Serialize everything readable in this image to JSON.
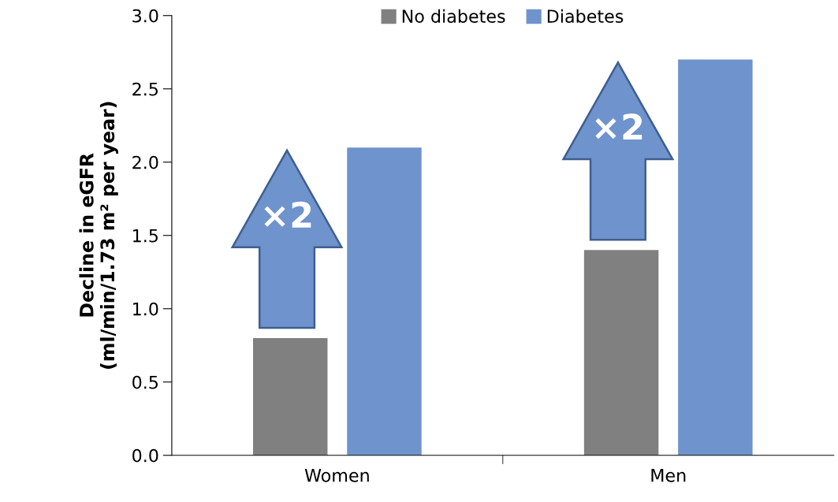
{
  "chart_data": {
    "type": "bar",
    "ylabel": "Decline in eGFR\n(ml/min/1.73 m² per year)",
    "categories": [
      "Women",
      "Men"
    ],
    "series": [
      {
        "name": "No diabetes",
        "color": "#808080",
        "values": [
          0.8,
          1.4
        ]
      },
      {
        "name": "Diabetes",
        "color": "#6f93cc",
        "values": [
          2.1,
          2.7
        ]
      }
    ],
    "ylim": [
      0,
      3.0
    ],
    "yticks": [
      {
        "value": 0,
        "label": "0.0"
      },
      {
        "value": 0.5,
        "label": "0.5"
      },
      {
        "value": 1.0,
        "label": "1.0"
      },
      {
        "value": 1.5,
        "label": "1.5"
      },
      {
        "value": 2.0,
        "label": "2.0"
      },
      {
        "value": 2.5,
        "label": "2.5"
      },
      {
        "value": 3.0,
        "label": "3.0"
      }
    ],
    "annotations": [
      "×2",
      "×2"
    ],
    "grid": false,
    "legend": "top"
  }
}
